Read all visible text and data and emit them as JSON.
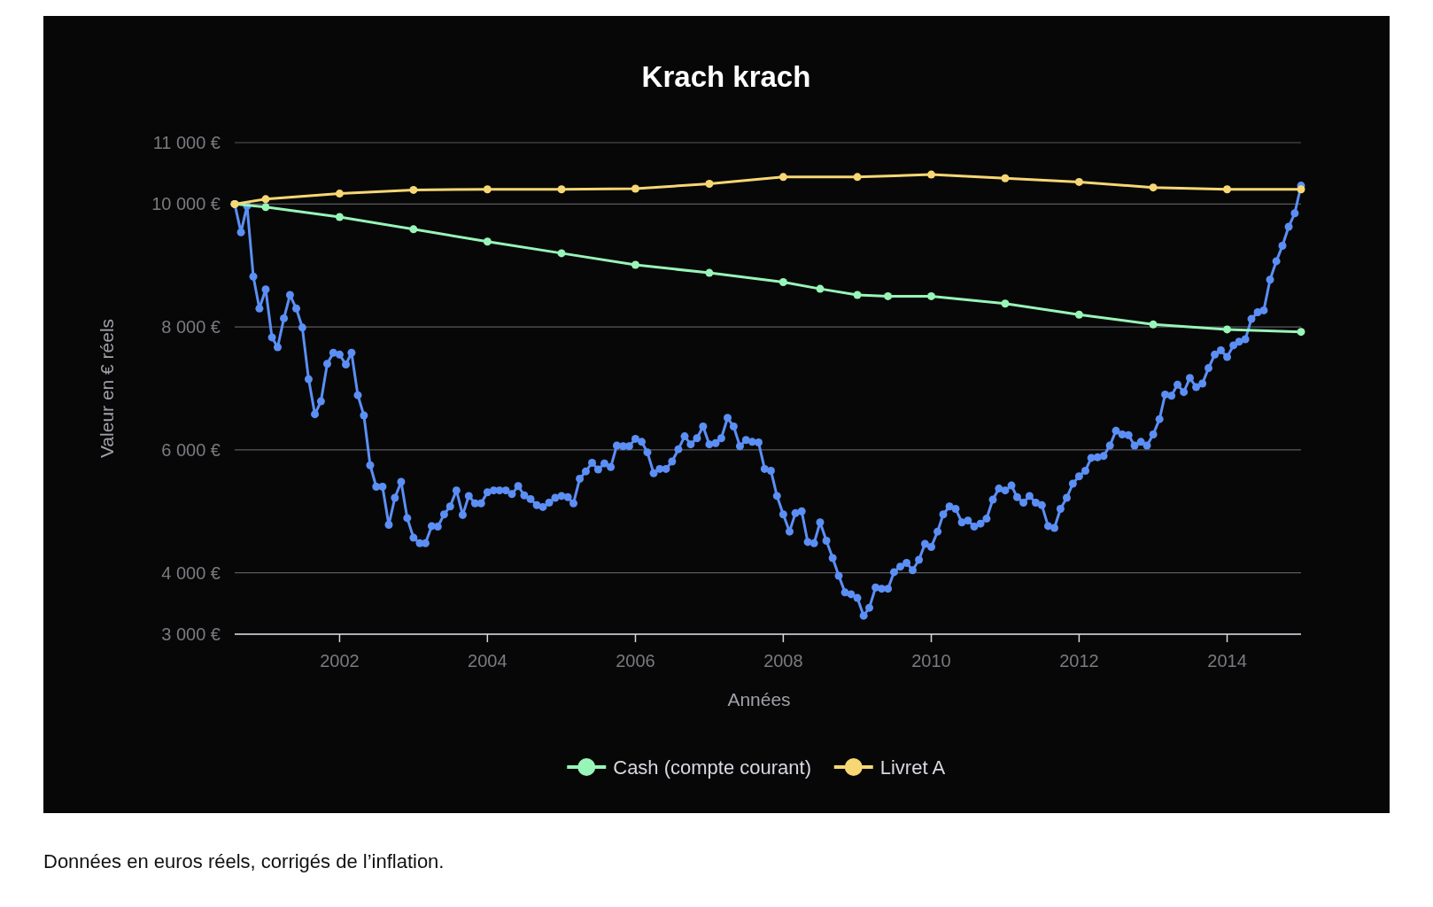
{
  "chart_data": {
    "type": "line",
    "title": "Krach krach",
    "xlabel": "Années",
    "ylabel": "Valeur en € réels",
    "annotations": [
      "Données en euros réels, corrigés de l’inflation."
    ],
    "xlim": [
      "2000-08",
      "2015-01"
    ],
    "xticks": [
      "2002",
      "2004",
      "2006",
      "2008",
      "2010",
      "2012",
      "2014"
    ],
    "ylim": [
      3000,
      11000
    ],
    "yticks": [
      {
        "value": 3000,
        "label": "3 000 €"
      },
      {
        "value": 4000,
        "label": "4 000 €"
      },
      {
        "value": 6000,
        "label": "6 000 €"
      },
      {
        "value": 8000,
        "label": "8 000 €"
      },
      {
        "value": 10000,
        "label": "10 000 €"
      },
      {
        "value": 11000,
        "label": "11 000 €"
      }
    ],
    "grid": "y",
    "legend": "bottom",
    "marker": "circle",
    "line_style": "solid",
    "series": [
      {
        "color": "#5b8ff5",
        "x": [
          "2000-08",
          "2000-09",
          "2000-10",
          "2000-11",
          "2000-12",
          "2001-01",
          "2001-02",
          "2001-03",
          "2001-04",
          "2001-05",
          "2001-06",
          "2001-07",
          "2001-08",
          "2001-09",
          "2001-10",
          "2001-11",
          "2001-12",
          "2002-01",
          "2002-02",
          "2002-03",
          "2002-04",
          "2002-05",
          "2002-06",
          "2002-07",
          "2002-08",
          "2002-09",
          "2002-10",
          "2002-11",
          "2002-12",
          "2003-01",
          "2003-02",
          "2003-03",
          "2003-04",
          "2003-05",
          "2003-06",
          "2003-07",
          "2003-08",
          "2003-09",
          "2003-10",
          "2003-11",
          "2003-12",
          "2004-01",
          "2004-02",
          "2004-03",
          "2004-04",
          "2004-05",
          "2004-06",
          "2004-07",
          "2004-08",
          "2004-09",
          "2004-10",
          "2004-11",
          "2004-12",
          "2005-01",
          "2005-02",
          "2005-03",
          "2005-04",
          "2005-05",
          "2005-06",
          "2005-07",
          "2005-08",
          "2005-09",
          "2005-10",
          "2005-11",
          "2005-12",
          "2006-01",
          "2006-02",
          "2006-03",
          "2006-04",
          "2006-05",
          "2006-06",
          "2006-07",
          "2006-08",
          "2006-09",
          "2006-10",
          "2006-11",
          "2006-12",
          "2007-01",
          "2007-02",
          "2007-03",
          "2007-04",
          "2007-05",
          "2007-06",
          "2007-07",
          "2007-08",
          "2007-09",
          "2007-10",
          "2007-11",
          "2007-12",
          "2008-01",
          "2008-02",
          "2008-03",
          "2008-04",
          "2008-05",
          "2008-06",
          "2008-07",
          "2008-08",
          "2008-09",
          "2008-10",
          "2008-11",
          "2008-12",
          "2009-01",
          "2009-02",
          "2009-03",
          "2009-04",
          "2009-05",
          "2009-06",
          "2009-07",
          "2009-08",
          "2009-09",
          "2009-10",
          "2009-11",
          "2009-12",
          "2010-01",
          "2010-02",
          "2010-03",
          "2010-04",
          "2010-05",
          "2010-06",
          "2010-07",
          "2010-08",
          "2010-09",
          "2010-10",
          "2010-11",
          "2010-12",
          "2011-01",
          "2011-02",
          "2011-03",
          "2011-04",
          "2011-05",
          "2011-06",
          "2011-07",
          "2011-08",
          "2011-09",
          "2011-10",
          "2011-11",
          "2011-12",
          "2012-01",
          "2012-02",
          "2012-03",
          "2012-04",
          "2012-05",
          "2012-06",
          "2012-07",
          "2012-08",
          "2012-09",
          "2012-10",
          "2012-11",
          "2012-12",
          "2013-01",
          "2013-02",
          "2013-03",
          "2013-04",
          "2013-05",
          "2013-06",
          "2013-07",
          "2013-08",
          "2013-09",
          "2013-10",
          "2013-11",
          "2013-12",
          "2014-01",
          "2014-02",
          "2014-03",
          "2014-04",
          "2014-05",
          "2014-06",
          "2014-07",
          "2014-08",
          "2014-09",
          "2014-10",
          "2014-11",
          "2014-12",
          "2015-01"
        ],
        "values": [
          10000,
          9540,
          9970,
          8820,
          8300,
          8610,
          7830,
          7670,
          8140,
          8520,
          8300,
          7990,
          7150,
          6580,
          6790,
          7400,
          7580,
          7550,
          7390,
          7580,
          6890,
          6560,
          5750,
          5400,
          5400,
          4780,
          5220,
          5480,
          4890,
          4570,
          4480,
          4480,
          4760,
          4750,
          4950,
          5080,
          5340,
          4940,
          5250,
          5130,
          5130,
          5310,
          5340,
          5340,
          5340,
          5280,
          5410,
          5260,
          5200,
          5100,
          5070,
          5140,
          5220,
          5250,
          5230,
          5130,
          5530,
          5650,
          5790,
          5680,
          5780,
          5720,
          6070,
          6060,
          6060,
          6180,
          6130,
          5960,
          5620,
          5690,
          5690,
          5810,
          6010,
          6220,
          6090,
          6190,
          6380,
          6090,
          6110,
          6190,
          6520,
          6380,
          6060,
          6160,
          6130,
          6120,
          5690,
          5660,
          5250,
          4950,
          4670,
          4970,
          5000,
          4500,
          4480,
          4820,
          4520,
          4240,
          3950,
          3680,
          3650,
          3590,
          3300,
          3430,
          3760,
          3740,
          3740,
          4010,
          4100,
          4160,
          4040,
          4210,
          4470,
          4420,
          4670,
          4950,
          5080,
          5040,
          4820,
          4850,
          4750,
          4800,
          4880,
          5190,
          5370,
          5340,
          5420,
          5230,
          5140,
          5250,
          5140,
          5100,
          4760,
          4730,
          5040,
          5220,
          5450,
          5570,
          5660,
          5870,
          5880,
          5900,
          6070,
          6310,
          6250,
          6240,
          6070,
          6130,
          6070,
          6250,
          6500,
          6900,
          6880,
          7060,
          6940,
          7170,
          7020,
          7080,
          7330,
          7550,
          7620,
          7510,
          7700,
          7760,
          7800,
          8130,
          8240,
          8270,
          8770,
          9070,
          9320,
          9630,
          9850,
          10300
        ]
      },
      {
        "name": "Cash (compte courant)",
        "color": "#98f5b8",
        "x": [
          "2000-08",
          "2001-01",
          "2002-01",
          "2003-01",
          "2004-01",
          "2005-01",
          "2006-01",
          "2007-01",
          "2008-01",
          "2008-07",
          "2009-01",
          "2009-06",
          "2010-01",
          "2011-01",
          "2012-01",
          "2013-01",
          "2014-01",
          "2015-01"
        ],
        "values": [
          10000,
          9950,
          9790,
          9590,
          9390,
          9200,
          9010,
          8880,
          8730,
          8620,
          8520,
          8500,
          8500,
          8380,
          8200,
          8040,
          7960,
          7920
        ]
      },
      {
        "name": "Livret A",
        "color": "#f7d774",
        "x": [
          "2000-08",
          "2001-01",
          "2002-01",
          "2003-01",
          "2004-01",
          "2005-01",
          "2006-01",
          "2007-01",
          "2008-01",
          "2009-01",
          "2010-01",
          "2011-01",
          "2012-01",
          "2013-01",
          "2014-01",
          "2015-01"
        ],
        "values": [
          10000,
          10080,
          10170,
          10230,
          10240,
          10240,
          10250,
          10330,
          10440,
          10440,
          10480,
          10420,
          10360,
          10270,
          10240,
          10240
        ]
      }
    ]
  }
}
